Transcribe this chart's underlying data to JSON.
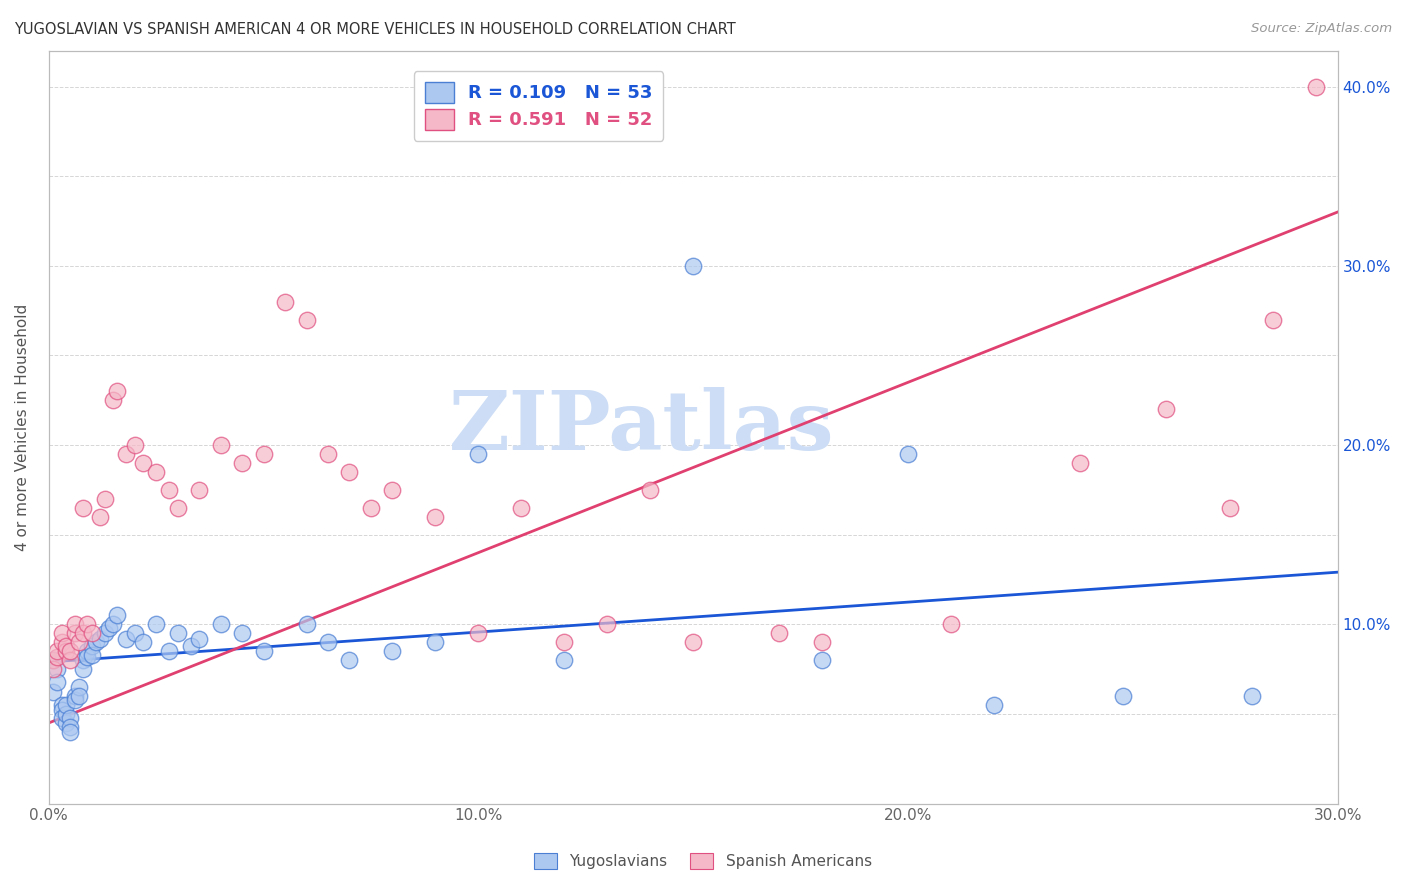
{
  "title": "YUGOSLAVIAN VS SPANISH AMERICAN 4 OR MORE VEHICLES IN HOUSEHOLD CORRELATION CHART",
  "source": "Source: ZipAtlas.com",
  "ylabel_label": "4 or more Vehicles in Household",
  "xlim": [
    0.0,
    0.3
  ],
  "ylim": [
    0.0,
    0.42
  ],
  "xticks": [
    0.0,
    0.05,
    0.1,
    0.15,
    0.2,
    0.25,
    0.3
  ],
  "xtick_labels": [
    "0.0%",
    "",
    "10.0%",
    "",
    "20.0%",
    "",
    "30.0%"
  ],
  "yticks": [
    0.0,
    0.05,
    0.1,
    0.15,
    0.2,
    0.25,
    0.3,
    0.35,
    0.4
  ],
  "ytick_labels_left": [
    "",
    "",
    "",
    "",
    "",
    "",
    "",
    "",
    ""
  ],
  "ytick_labels_right": [
    "",
    "",
    "10.0%",
    "",
    "20.0%",
    "",
    "30.0%",
    "",
    "40.0%"
  ],
  "legend_blue_label": "Yugoslavians",
  "legend_pink_label": "Spanish Americans",
  "blue_R": "0.109",
  "blue_N": "53",
  "pink_R": "0.591",
  "pink_N": "52",
  "blue_color": "#adc8f0",
  "pink_color": "#f5b8c8",
  "blue_edge_color": "#4a7fd4",
  "pink_edge_color": "#e05080",
  "blue_line_color": "#1a56d6",
  "pink_line_color": "#e04070",
  "watermark_text": "ZIPatlas",
  "watermark_color": "#ccddf5",
  "blue_intercept": 0.079,
  "blue_slope": 0.167,
  "pink_intercept": 0.045,
  "pink_slope": 0.95,
  "blue_x": [
    0.001,
    0.001,
    0.002,
    0.002,
    0.003,
    0.003,
    0.003,
    0.004,
    0.004,
    0.004,
    0.005,
    0.005,
    0.005,
    0.006,
    0.006,
    0.007,
    0.007,
    0.008,
    0.008,
    0.009,
    0.009,
    0.01,
    0.01,
    0.011,
    0.012,
    0.013,
    0.014,
    0.015,
    0.016,
    0.018,
    0.02,
    0.022,
    0.025,
    0.028,
    0.03,
    0.033,
    0.035,
    0.04,
    0.045,
    0.05,
    0.06,
    0.065,
    0.07,
    0.08,
    0.09,
    0.1,
    0.12,
    0.15,
    0.18,
    0.2,
    0.22,
    0.25,
    0.28
  ],
  "blue_y": [
    0.08,
    0.062,
    0.075,
    0.068,
    0.055,
    0.052,
    0.048,
    0.045,
    0.05,
    0.055,
    0.048,
    0.043,
    0.04,
    0.06,
    0.058,
    0.065,
    0.06,
    0.08,
    0.075,
    0.085,
    0.082,
    0.088,
    0.083,
    0.09,
    0.092,
    0.095,
    0.098,
    0.1,
    0.105,
    0.092,
    0.095,
    0.09,
    0.1,
    0.085,
    0.095,
    0.088,
    0.092,
    0.1,
    0.095,
    0.085,
    0.1,
    0.09,
    0.08,
    0.085,
    0.09,
    0.195,
    0.08,
    0.3,
    0.08,
    0.195,
    0.055,
    0.06,
    0.06
  ],
  "pink_x": [
    0.001,
    0.001,
    0.002,
    0.002,
    0.003,
    0.003,
    0.004,
    0.004,
    0.005,
    0.005,
    0.006,
    0.006,
    0.007,
    0.008,
    0.008,
    0.009,
    0.01,
    0.012,
    0.013,
    0.015,
    0.016,
    0.018,
    0.02,
    0.022,
    0.025,
    0.028,
    0.03,
    0.035,
    0.04,
    0.045,
    0.05,
    0.055,
    0.06,
    0.065,
    0.07,
    0.075,
    0.08,
    0.09,
    0.1,
    0.11,
    0.12,
    0.13,
    0.14,
    0.15,
    0.17,
    0.18,
    0.21,
    0.24,
    0.26,
    0.275,
    0.285,
    0.295
  ],
  "pink_y": [
    0.08,
    0.075,
    0.082,
    0.085,
    0.09,
    0.095,
    0.085,
    0.088,
    0.08,
    0.085,
    0.095,
    0.1,
    0.09,
    0.165,
    0.095,
    0.1,
    0.095,
    0.16,
    0.17,
    0.225,
    0.23,
    0.195,
    0.2,
    0.19,
    0.185,
    0.175,
    0.165,
    0.175,
    0.2,
    0.19,
    0.195,
    0.28,
    0.27,
    0.195,
    0.185,
    0.165,
    0.175,
    0.16,
    0.095,
    0.165,
    0.09,
    0.1,
    0.175,
    0.09,
    0.095,
    0.09,
    0.1,
    0.19,
    0.22,
    0.165,
    0.27,
    0.4
  ]
}
